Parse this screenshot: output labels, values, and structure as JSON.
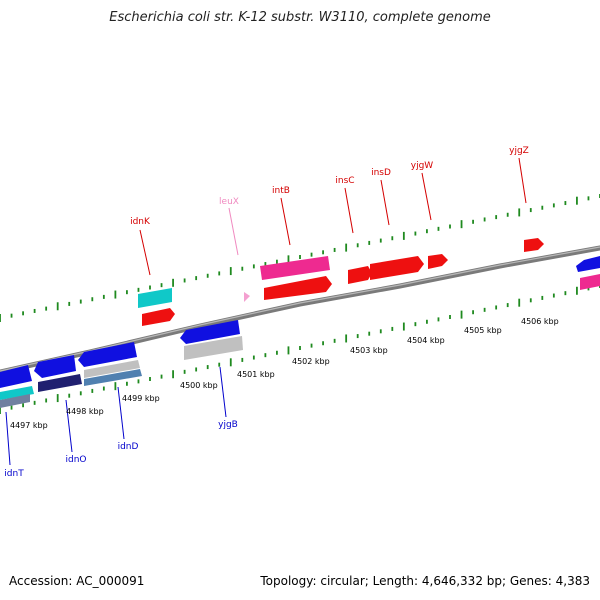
{
  "title": "Escherichia coli str. K-12 substr. W3110, complete genome",
  "footer": {
    "accession": "Accession: AC_000091",
    "summary": "Topology: circular; Length: 4,646,332 bp; Genes: 4,383"
  },
  "colors": {
    "backbone": "#7a7a7a",
    "tick_dot": "#1f8a1f",
    "label_top": "#d40000",
    "label_top_rna": "#f08ac0",
    "label_bottom": "#0000cc",
    "gene_blue": "#1010e0",
    "gene_red": "#ee1010",
    "gene_pink": "#ee2a90",
    "gene_cyan": "#10c8c8",
    "gene_gray": "#c0c0c0",
    "gene_navy": "#202070",
    "gene_steel": "#5080b0"
  },
  "scale_labels": [
    "4497 kbp",
    "4498 kbp",
    "4499 kbp",
    "4500 kbp",
    "4501 kbp",
    "4502 kbp",
    "4503 kbp",
    "4504 kbp",
    "4505 kbp",
    "4506 kbp"
  ],
  "gene_labels_top": [
    {
      "name": "idnK",
      "color": "#d40000"
    },
    {
      "name": "leuX",
      "color": "#f08ac0"
    },
    {
      "name": "intB",
      "color": "#d40000"
    },
    {
      "name": "insC",
      "color": "#d40000"
    },
    {
      "name": "insD",
      "color": "#d40000"
    },
    {
      "name": "yjgW",
      "color": "#d40000"
    },
    {
      "name": "yjgZ",
      "color": "#d40000"
    }
  ],
  "gene_labels_bottom": [
    {
      "name": "idnT"
    },
    {
      "name": "idnO"
    },
    {
      "name": "idnD"
    },
    {
      "name": "yjgB"
    }
  ]
}
